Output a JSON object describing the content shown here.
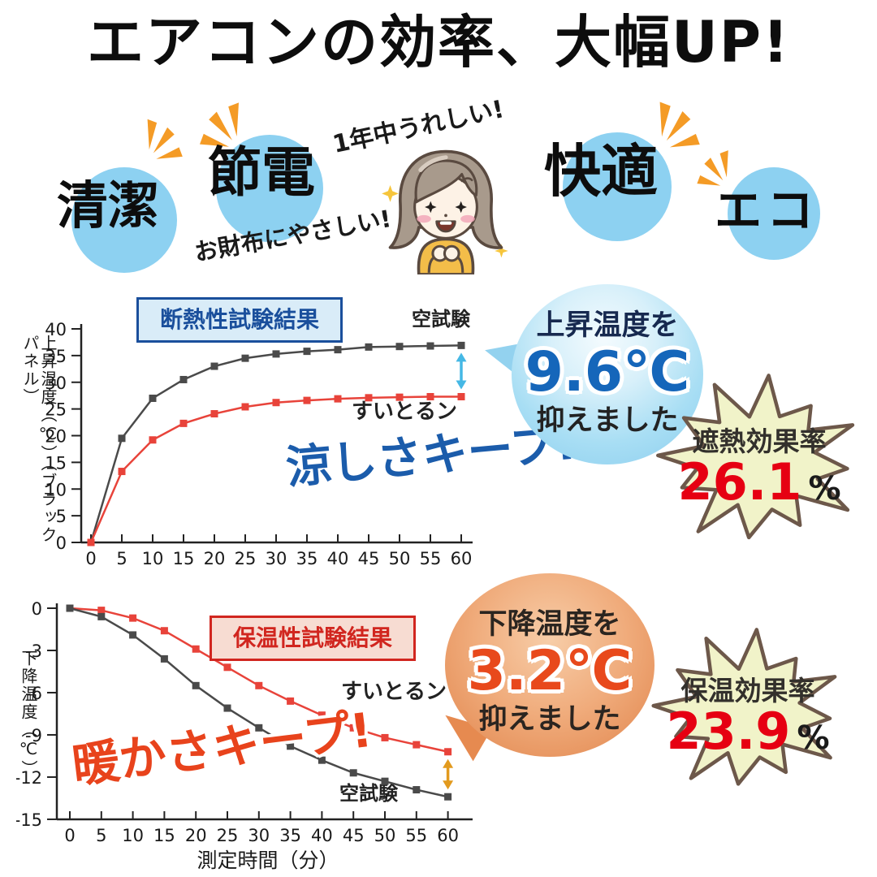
{
  "title": "エアコンの効率、大幅UP!",
  "features": {
    "items": [
      {
        "label": "清潔"
      },
      {
        "label": "節電"
      },
      {
        "label": "快適"
      },
      {
        "label": "エコ"
      }
    ],
    "note_top": "1年中うれしい!",
    "note_bottom": "お財布にやさしい!"
  },
  "insulation_section": {
    "box_title": "断熱性試験結果",
    "keep_text": "涼しさキープ!",
    "callout": {
      "line1": "上昇温度を",
      "value": "9.6℃",
      "line2": "抑えました"
    },
    "badge": {
      "label": "遮熱効果率",
      "value": "26.1",
      "unit": "%"
    }
  },
  "retention_section": {
    "box_title": "保温性試験結果",
    "keep_text": "暖かさキープ!",
    "callout": {
      "line1": "下降温度を",
      "value": "3.2℃",
      "line2": "抑えました"
    },
    "badge": {
      "label": "保温効果率",
      "value": "23.9",
      "unit": "%"
    }
  },
  "colors": {
    "feature_circle": "#8dd1f1",
    "sparkle": "#f49b26",
    "blank_test_line": "#4a4a4a",
    "product_line": "#e8433a",
    "cool_arrow": "#45b8e5",
    "warm_arrow": "#e29a1e",
    "badge_fill": "#f1f3c9",
    "badge_stroke": "#6d584a",
    "badge_value_red": "#e60012",
    "keep_cool_blue": "#1b5cab",
    "keep_warm_red": "#e8431c"
  },
  "chart_data": [
    {
      "type": "line",
      "title": "断熱性試験結果",
      "xlabel": "",
      "ylabel": "上昇温度（℃）（ブラックパネル）",
      "x": [
        0,
        5,
        10,
        15,
        20,
        25,
        30,
        35,
        40,
        45,
        50,
        55,
        60
      ],
      "ylim": [
        0,
        40
      ],
      "yticks": [
        0,
        5,
        10,
        15,
        20,
        25,
        30,
        35,
        40
      ],
      "series": [
        {
          "name": "空試験",
          "color": "#4a4a4a",
          "values": [
            0,
            19.5,
            27.0,
            30.5,
            33.0,
            34.5,
            35.3,
            35.8,
            36.1,
            36.6,
            36.7,
            36.8,
            36.9
          ]
        },
        {
          "name": "すいとるン",
          "color": "#e8433a",
          "values": [
            0,
            13.3,
            19.2,
            22.3,
            24.1,
            25.4,
            26.2,
            26.6,
            26.9,
            27.1,
            27.2,
            27.3,
            27.3
          ]
        }
      ],
      "annotation": {
        "arrow_delta": "9.6℃",
        "arrow_color": "#45b8e5",
        "legend_position": "inline"
      }
    },
    {
      "type": "line",
      "title": "保温性試験結果",
      "xlabel": "測定時間（分）",
      "ylabel": "下降温度（℃）",
      "x": [
        0,
        5,
        10,
        15,
        20,
        25,
        30,
        35,
        40,
        45,
        50,
        55,
        60
      ],
      "ylim": [
        -15,
        0
      ],
      "yticks": [
        0,
        -3,
        -6,
        -9,
        -12,
        -15
      ],
      "series": [
        {
          "name": "すいとるン",
          "color": "#e8433a",
          "values": [
            0,
            -0.15,
            -0.7,
            -1.6,
            -2.9,
            -4.2,
            -5.5,
            -6.6,
            -7.6,
            -8.5,
            -9.2,
            -9.7,
            -10.2
          ]
        },
        {
          "name": "空試験",
          "color": "#4a4a4a",
          "values": [
            0,
            -0.6,
            -1.9,
            -3.6,
            -5.5,
            -7.1,
            -8.5,
            -9.8,
            -10.8,
            -11.7,
            -12.3,
            -12.9,
            -13.4
          ]
        }
      ],
      "annotation": {
        "arrow_delta": "3.2℃",
        "arrow_color": "#e29a1e",
        "legend_position": "inline"
      }
    }
  ]
}
